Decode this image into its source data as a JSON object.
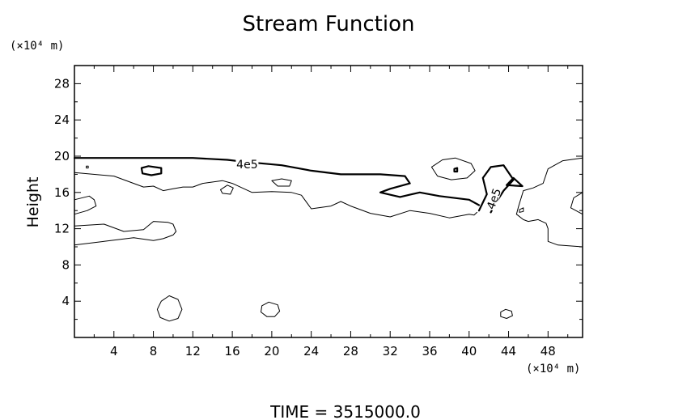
{
  "chart_data": {
    "type": "contour",
    "title": "Stream Function",
    "ylabel": "Height",
    "y_unit": "(×10⁴ m)",
    "x_unit": "(×10⁴ m)",
    "xlim": [
      0,
      51.5
    ],
    "ylim": [
      0,
      30
    ],
    "xticks": [
      4,
      8,
      12,
      16,
      20,
      24,
      28,
      32,
      36,
      40,
      44,
      48
    ],
    "yticks": [
      4,
      8,
      12,
      16,
      20,
      24,
      28
    ],
    "contour_labels": [
      {
        "text": "4e5",
        "x": 17.5,
        "y": 19.1,
        "rotate": 0
      },
      {
        "text": "4e5",
        "x": 42.5,
        "y": 15.3,
        "rotate": -70
      }
    ],
    "contours": [
      {
        "level": "4e5",
        "bold": true,
        "points": [
          [
            0,
            19.8
          ],
          [
            6,
            19.8
          ],
          [
            12,
            19.8
          ],
          [
            15.5,
            19.6
          ],
          [
            17,
            19.4
          ],
          [
            21,
            19.0
          ],
          [
            24,
            18.4
          ],
          [
            27,
            18.0
          ],
          [
            31,
            18.0
          ],
          [
            33.5,
            17.8
          ],
          [
            34,
            17.0
          ],
          [
            32,
            16.4
          ],
          [
            31,
            16.0
          ],
          [
            33,
            15.5
          ],
          [
            35,
            16.0
          ],
          [
            37,
            15.6
          ],
          [
            40,
            15.2
          ],
          [
            41,
            14.6
          ]
        ]
      },
      {
        "level": "4e5",
        "bold": true,
        "points": [
          [
            41,
            14.0
          ],
          [
            41.8,
            15.8
          ],
          [
            41.4,
            17.6
          ],
          [
            42.2,
            18.8
          ],
          [
            43.5,
            19.0
          ],
          [
            44.5,
            17.4
          ],
          [
            43.5,
            16.2
          ],
          [
            42.8,
            15.0
          ],
          [
            42.2,
            13.8
          ]
        ]
      },
      {
        "level": "4e5",
        "bold": true,
        "closed": true,
        "points": [
          [
            44.5,
            17.6
          ],
          [
            45.4,
            16.7
          ],
          [
            43.8,
            16.8
          ]
        ]
      },
      {
        "level": "4e5",
        "bold": true,
        "closed": true,
        "points": [
          [
            6.8,
            18.7
          ],
          [
            7.5,
            18.9
          ],
          [
            8.8,
            18.7
          ],
          [
            8.8,
            18.1
          ],
          [
            7.8,
            17.9
          ],
          [
            6.9,
            18.1
          ]
        ]
      },
      {
        "level": "4e5",
        "bold": false,
        "points": [
          [
            0,
            18.2
          ],
          [
            4,
            17.8
          ],
          [
            6,
            17.0
          ],
          [
            7,
            16.6
          ],
          [
            8,
            16.7
          ],
          [
            9,
            16.2
          ],
          [
            10,
            16.4
          ],
          [
            11,
            16.6
          ],
          [
            12,
            16.6
          ],
          [
            13,
            17.0
          ],
          [
            15,
            17.3
          ],
          [
            16,
            17.0
          ],
          [
            18,
            16.0
          ],
          [
            20,
            16.1
          ],
          [
            22,
            16.0
          ],
          [
            23,
            15.7
          ],
          [
            24,
            14.2
          ],
          [
            26,
            14.5
          ],
          [
            27,
            15.0
          ],
          [
            28,
            14.5
          ],
          [
            30,
            13.7
          ],
          [
            32,
            13.3
          ],
          [
            34,
            14.0
          ],
          [
            36,
            13.7
          ],
          [
            38,
            13.2
          ],
          [
            40,
            13.6
          ],
          [
            40.5,
            13.5
          ],
          [
            40.8,
            13.8
          ]
        ]
      },
      {
        "level": "4e5",
        "bold": false,
        "points": [
          [
            0,
            12.3
          ],
          [
            3,
            12.5
          ],
          [
            5,
            11.7
          ],
          [
            7,
            11.9
          ],
          [
            8,
            12.8
          ],
          [
            9.5,
            12.7
          ],
          [
            10,
            12.5
          ],
          [
            10.3,
            11.7
          ],
          [
            10,
            11.3
          ],
          [
            9,
            10.9
          ],
          [
            8,
            10.7
          ],
          [
            6,
            11.0
          ],
          [
            3,
            10.6
          ],
          [
            0,
            10.2
          ]
        ]
      },
      {
        "level": "4e5",
        "bold": false,
        "points": [
          [
            0,
            15.2
          ],
          [
            1.5,
            15.6
          ],
          [
            2,
            15.2
          ],
          [
            2.2,
            14.5
          ],
          [
            1.3,
            14.0
          ],
          [
            0,
            13.6
          ]
        ]
      },
      {
        "level": "4e5",
        "bold": false,
        "closed": true,
        "points": [
          [
            14.8,
            16.3
          ],
          [
            15.5,
            16.8
          ],
          [
            16.1,
            16.5
          ],
          [
            15.8,
            15.8
          ],
          [
            15.0,
            15.9
          ]
        ]
      },
      {
        "level": "4e5",
        "bold": false,
        "closed": true,
        "points": [
          [
            20.0,
            17.3
          ],
          [
            21.0,
            17.5
          ],
          [
            22.0,
            17.3
          ],
          [
            21.8,
            16.7
          ],
          [
            20.6,
            16.7
          ]
        ]
      },
      {
        "level": "4e5",
        "bold": false,
        "closed": true,
        "points": [
          [
            36.2,
            18.8
          ],
          [
            37.3,
            19.6
          ],
          [
            38.6,
            19.8
          ],
          [
            40.2,
            19.2
          ],
          [
            40.6,
            18.4
          ],
          [
            39.8,
            17.6
          ],
          [
            38.2,
            17.4
          ],
          [
            36.8,
            17.8
          ]
        ]
      },
      {
        "level": "4e5",
        "bold": true,
        "closed": true,
        "points": [
          [
            38.5,
            18.6
          ],
          [
            38.8,
            18.7
          ],
          [
            38.8,
            18.3
          ],
          [
            38.5,
            18.3
          ]
        ]
      },
      {
        "level": "4e5",
        "bold": false,
        "points": [
          [
            51.5,
            19.8
          ],
          [
            49.5,
            19.5
          ],
          [
            48,
            18.6
          ],
          [
            47.5,
            17.0
          ],
          [
            46.5,
            16.5
          ],
          [
            45.5,
            16.2
          ],
          [
            45,
            14.4
          ],
          [
            44.8,
            13.6
          ],
          [
            45.5,
            13.0
          ],
          [
            46,
            12.8
          ],
          [
            47,
            13.0
          ],
          [
            47.8,
            12.6
          ],
          [
            48,
            12.0
          ],
          [
            48,
            10.6
          ],
          [
            49,
            10.2
          ],
          [
            51.5,
            10.0
          ]
        ]
      },
      {
        "level": "4e5",
        "bold": false,
        "points": [
          [
            51.5,
            16.0
          ],
          [
            50.6,
            15.4
          ],
          [
            50.3,
            14.3
          ],
          [
            51.5,
            13.6
          ]
        ]
      },
      {
        "level": "4e5",
        "bold": false,
        "closed": true,
        "points": [
          [
            45.1,
            14.1
          ],
          [
            45.5,
            14.3
          ],
          [
            45.5,
            13.9
          ],
          [
            45.1,
            13.8
          ]
        ]
      },
      {
        "level": "4e5",
        "bold": false,
        "closed": true,
        "points": [
          [
            8.8,
            4.0
          ],
          [
            9.6,
            4.6
          ],
          [
            10.5,
            4.2
          ],
          [
            10.9,
            3.1
          ],
          [
            10.5,
            2.1
          ],
          [
            9.6,
            1.8
          ],
          [
            8.7,
            2.2
          ],
          [
            8.4,
            3.1
          ]
        ]
      },
      {
        "level": "4e5",
        "bold": false,
        "closed": true,
        "points": [
          [
            19.0,
            3.5
          ],
          [
            19.7,
            3.9
          ],
          [
            20.6,
            3.6
          ],
          [
            20.8,
            2.9
          ],
          [
            20.3,
            2.3
          ],
          [
            19.5,
            2.3
          ],
          [
            18.9,
            2.8
          ]
        ]
      },
      {
        "level": "4e5",
        "bold": false,
        "closed": true,
        "points": [
          [
            43.2,
            2.8
          ],
          [
            43.7,
            3.1
          ],
          [
            44.3,
            2.9
          ],
          [
            44.4,
            2.4
          ],
          [
            43.8,
            2.1
          ],
          [
            43.2,
            2.3
          ]
        ]
      },
      {
        "level": "4e5",
        "bold": false,
        "closed": true,
        "points": [
          [
            1.2,
            18.9
          ],
          [
            1.4,
            18.9
          ],
          [
            1.4,
            18.7
          ],
          [
            1.2,
            18.7
          ]
        ]
      }
    ]
  },
  "footer": {
    "time_label": "TIME = 3515000.0"
  }
}
